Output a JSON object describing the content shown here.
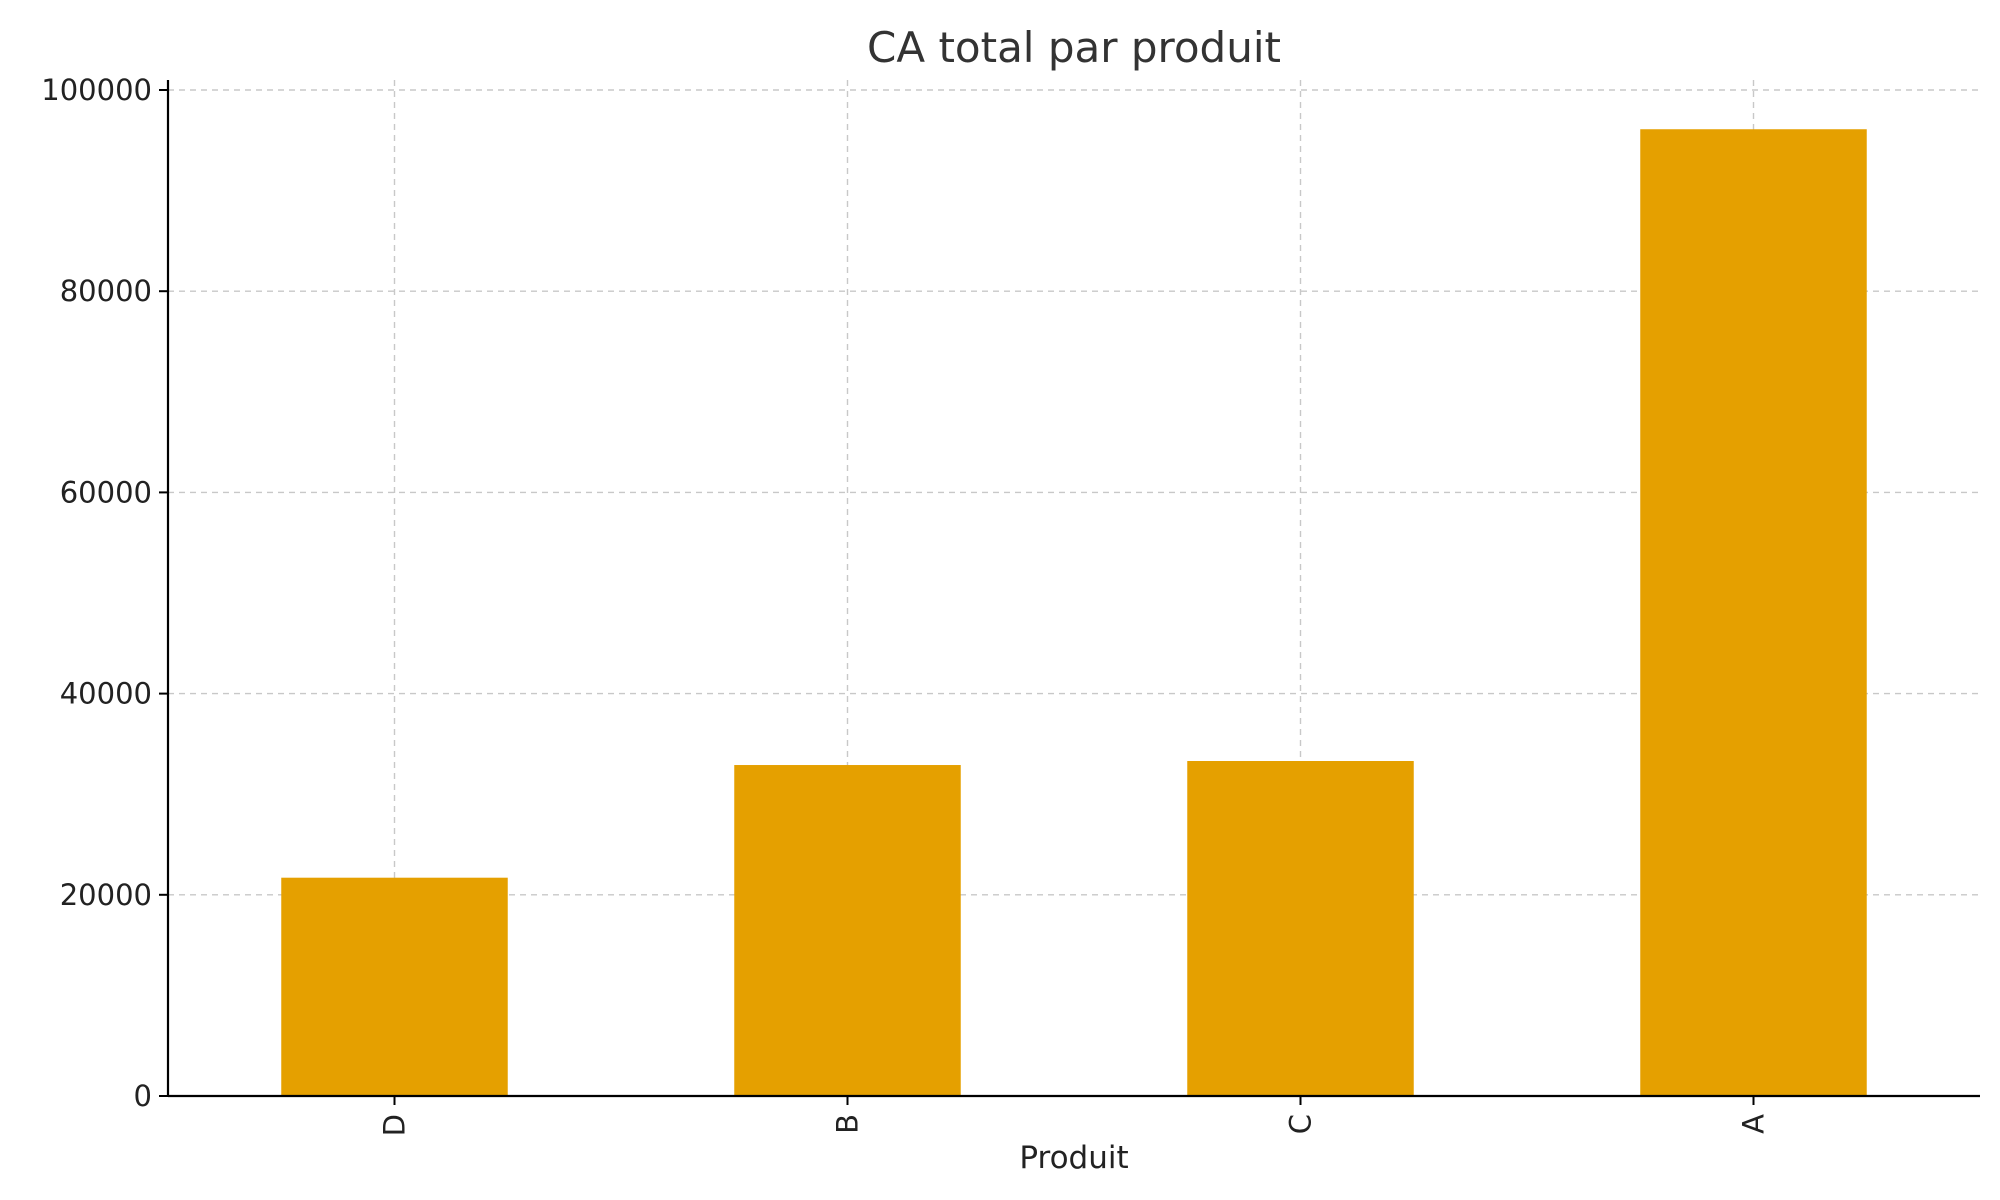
{
  "chart_data": {
    "type": "bar",
    "title": "CA total par produit",
    "xlabel": "Produit",
    "ylabel": "",
    "categories": [
      "D",
      "B",
      "C",
      "A"
    ],
    "values": [
      21700,
      32900,
      33300,
      96100
    ],
    "ylim": [
      0,
      100000
    ],
    "yticks": [
      0,
      20000,
      40000,
      60000,
      80000,
      100000
    ],
    "grid": true,
    "bar_color": "#E5A000",
    "legend": null
  }
}
